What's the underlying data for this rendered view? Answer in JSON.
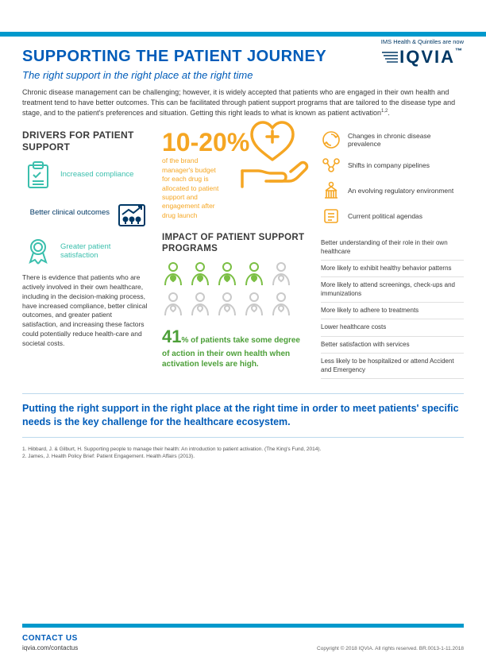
{
  "brand": {
    "tagline": "IMS Health & Quintiles are now",
    "logo_text": "IQVIA",
    "bar_color": "#0099cc",
    "navy": "#003865"
  },
  "title": "SUPPORTING THE PATIENT JOURNEY",
  "subtitle": "The right support in the right place at the right time",
  "intro": "Chronic disease management can be challenging; however, it is widely accepted that patients who are engaged in their own health and treatment tend to have better outcomes. This can be facilitated through patient support programs that are tailored to the disease type and stage, and to the patient's preferences and situation. Getting this right leads to what is known as patient activation",
  "intro_sup": "1,2",
  "colors": {
    "blue": "#005cb9",
    "orange": "#f5a623",
    "green": "#4c9f38",
    "teal": "#3bbfad",
    "grey": "#c9c9c9"
  },
  "drivers": {
    "title": "DRIVERS FOR PATIENT SUPPORT",
    "items": [
      {
        "icon": "clipboard",
        "label": "Increased compliance",
        "color": "teal"
      },
      {
        "icon": "chart-people",
        "label": "Better clinical outcomes",
        "color": "navy"
      },
      {
        "icon": "ribbon",
        "label": "Greater patient satisfaction",
        "color": "teal"
      }
    ],
    "body": "There is evidence that patients who are actively involved in their own healthcare, including in the decision-making process, have increased compliance, better clinical outcomes, and greater patient satisfaction, and increasing these factors could potentially reduce health-care and societal costs."
  },
  "budget": {
    "stat": "10-20%",
    "text": "of the brand manager's budget for each drug is allocated to patient support and engagement after drug launch"
  },
  "factors": [
    {
      "icon": "cycle",
      "text": "Changes in chronic disease prevalence"
    },
    {
      "icon": "pipeline",
      "text": "Shifts in company pipelines"
    },
    {
      "icon": "regulatory",
      "text": "An evolving regulatory environment"
    },
    {
      "icon": "agenda",
      "text": "Current political agendas"
    }
  ],
  "impact": {
    "title": "IMPACT OF PATIENT SUPPORT PROGRAMS",
    "people_total": 10,
    "people_active": 4,
    "active_color": "#7bbf44",
    "inactive_color": "#c9c9c9",
    "stat_num": "41",
    "stat_pct": "%",
    "stat_text": "of patients take some degree of action in their own health when activation levels are high."
  },
  "outcomes": [
    "Better understanding of their role in their own healthcare",
    "More likely to exhibit healthy behavior patterns",
    "More likely to attend screenings, check-ups and immunizations",
    "More likely to adhere to treatments",
    "Lower healthcare costs",
    "Better satisfaction with services",
    "Less likely to be hospitalized or attend Accident and Emergency"
  ],
  "callout": "Putting the right support in the right place at the right time in order to meet patients' specific needs is the key challenge for the healthcare ecosystem.",
  "refs": [
    "1. Hibbard, J. & Gilburt, H. Supporting people to manage their health: An introduction to patient activation. (The King's Fund, 2014).",
    "2. James, J. Health Policy Brief: Patient Engagement. Health Affairs (2013)."
  ],
  "footer": {
    "contact_label": "CONTACT US",
    "contact_url": "iqvia.com/contactus",
    "copyright": "Copyright © 2018 IQVIA. All rights reserved.  BR.0013-1-11.2018"
  }
}
